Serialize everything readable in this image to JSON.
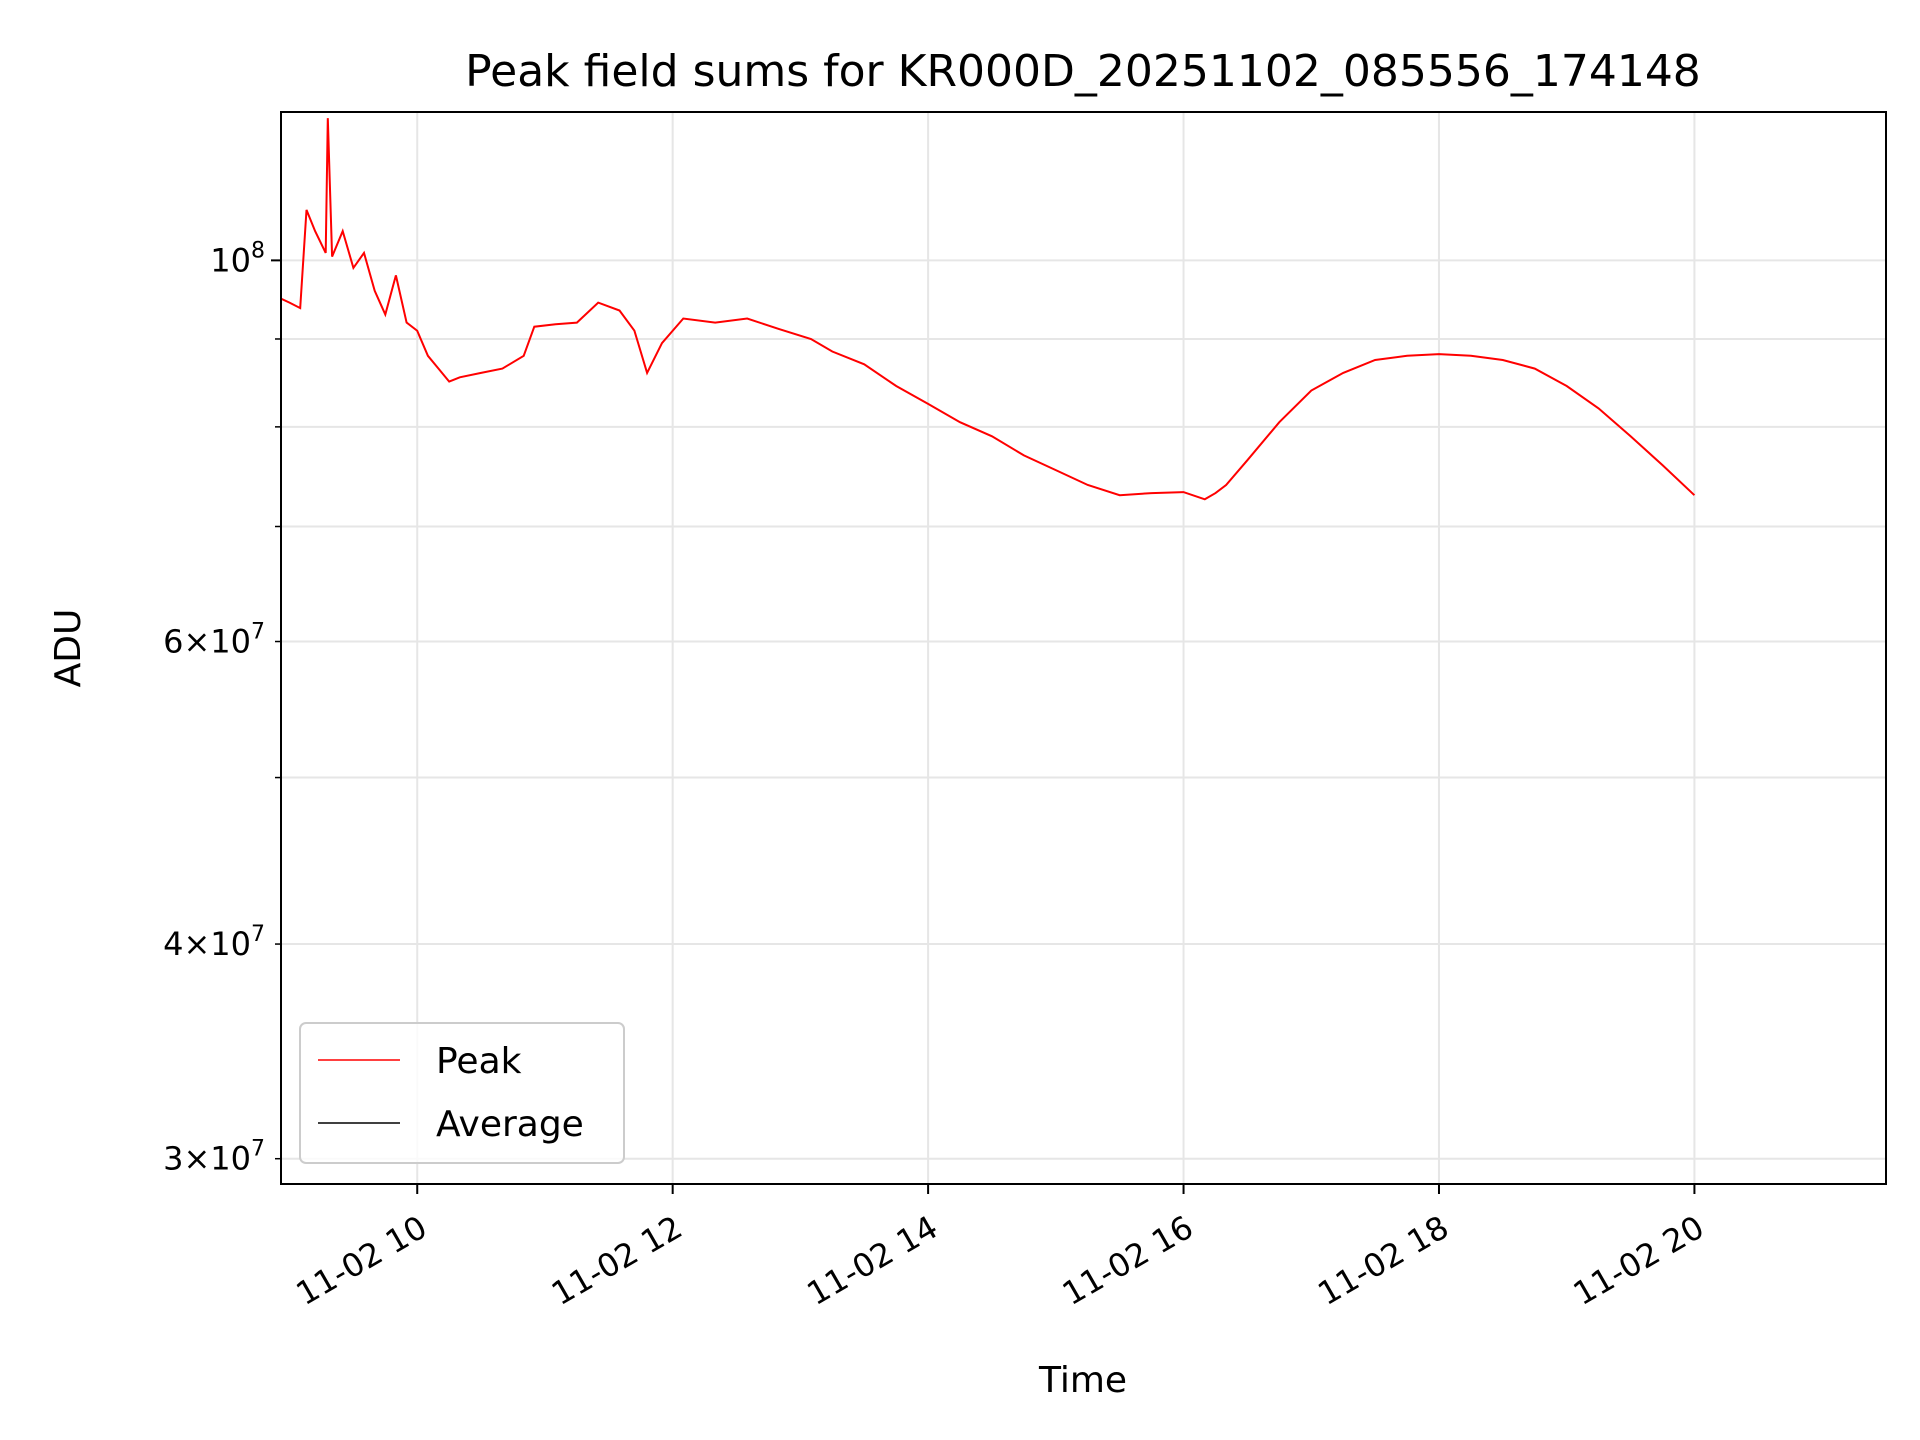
{
  "chart_data": {
    "type": "line",
    "title": "Peak field sums for KR000D_20251102_085556_174148",
    "xlabel": "Time",
    "ylabel": "ADU",
    "yscale": "log",
    "xlim": [
      "2025-11-02T08:56",
      "2025-11-02T21:30"
    ],
    "ylim": [
      29000000,
      122000000
    ],
    "x_ticks": [
      {
        "value": "2025-11-02T10:00",
        "label": "11-02 10"
      },
      {
        "value": "2025-11-02T12:00",
        "label": "11-02 12"
      },
      {
        "value": "2025-11-02T14:00",
        "label": "11-02 14"
      },
      {
        "value": "2025-11-02T16:00",
        "label": "11-02 16"
      },
      {
        "value": "2025-11-02T18:00",
        "label": "11-02 18"
      },
      {
        "value": "2025-11-02T20:00",
        "label": "11-02 20"
      }
    ],
    "y_major_ticks": [
      {
        "value": 100000000,
        "base": "10",
        "exp": "8"
      }
    ],
    "y_minor_ticks": [
      {
        "value": 30000000,
        "mant": "3",
        "base": "10",
        "exp": "7"
      },
      {
        "value": 40000000,
        "mant": "4",
        "base": "10",
        "exp": "7"
      },
      {
        "value": 50000000,
        "mant": "",
        "base": "",
        "exp": ""
      },
      {
        "value": 60000000,
        "mant": "6",
        "base": "10",
        "exp": "7"
      },
      {
        "value": 70000000,
        "mant": "",
        "base": "",
        "exp": ""
      },
      {
        "value": 80000000,
        "mant": "",
        "base": "",
        "exp": ""
      },
      {
        "value": 90000000,
        "mant": "",
        "base": "",
        "exp": ""
      }
    ],
    "grid": true,
    "legend_position": "lower-left",
    "series": [
      {
        "name": "Peak",
        "color": "#ff0000",
        "points": [
          [
            "2025-11-02T08:56",
            95000000
          ],
          [
            "2025-11-02T09:00",
            94500000
          ],
          [
            "2025-11-02T09:05",
            93800000
          ],
          [
            "2025-11-02T09:08",
            107000000
          ],
          [
            "2025-11-02T09:12",
            104000000
          ],
          [
            "2025-11-02T09:17",
            101000000
          ],
          [
            "2025-11-02T09:18",
            121000000
          ],
          [
            "2025-11-02T09:20",
            100500000
          ],
          [
            "2025-11-02T09:25",
            104000000
          ],
          [
            "2025-11-02T09:30",
            99000000
          ],
          [
            "2025-11-02T09:35",
            101000000
          ],
          [
            "2025-11-02T09:40",
            96000000
          ],
          [
            "2025-11-02T09:45",
            93000000
          ],
          [
            "2025-11-02T09:50",
            98000000
          ],
          [
            "2025-11-02T09:55",
            92000000
          ],
          [
            "2025-11-02T10:00",
            91000000
          ],
          [
            "2025-11-02T10:05",
            88000000
          ],
          [
            "2025-11-02T10:10",
            86500000
          ],
          [
            "2025-11-02T10:15",
            85000000
          ],
          [
            "2025-11-02T10:20",
            85500000
          ],
          [
            "2025-11-02T10:30",
            86000000
          ],
          [
            "2025-11-02T10:40",
            86500000
          ],
          [
            "2025-11-02T10:50",
            88000000
          ],
          [
            "2025-11-02T10:55",
            91500000
          ],
          [
            "2025-11-02T11:05",
            91800000
          ],
          [
            "2025-11-02T11:15",
            92000000
          ],
          [
            "2025-11-02T11:25",
            94500000
          ],
          [
            "2025-11-02T11:35",
            93500000
          ],
          [
            "2025-11-02T11:42",
            91000000
          ],
          [
            "2025-11-02T11:48",
            86000000
          ],
          [
            "2025-11-02T11:55",
            89500000
          ],
          [
            "2025-11-02T12:05",
            92500000
          ],
          [
            "2025-11-02T12:20",
            92000000
          ],
          [
            "2025-11-02T12:35",
            92500000
          ],
          [
            "2025-11-02T12:50",
            91200000
          ],
          [
            "2025-11-02T13:05",
            90000000
          ],
          [
            "2025-11-02T13:15",
            88500000
          ],
          [
            "2025-11-02T13:30",
            87000000
          ],
          [
            "2025-11-02T13:45",
            84500000
          ],
          [
            "2025-11-02T14:00",
            82500000
          ],
          [
            "2025-11-02T14:15",
            80500000
          ],
          [
            "2025-11-02T14:30",
            79000000
          ],
          [
            "2025-11-02T14:45",
            77000000
          ],
          [
            "2025-11-02T15:00",
            75500000
          ],
          [
            "2025-11-02T15:15",
            74000000
          ],
          [
            "2025-11-02T15:30",
            73000000
          ],
          [
            "2025-11-02T15:45",
            73200000
          ],
          [
            "2025-11-02T16:00",
            73300000
          ],
          [
            "2025-11-02T16:10",
            72600000
          ],
          [
            "2025-11-02T16:15",
            73200000
          ],
          [
            "2025-11-02T16:20",
            74000000
          ],
          [
            "2025-11-02T16:30",
            76500000
          ],
          [
            "2025-11-02T16:45",
            80500000
          ],
          [
            "2025-11-02T17:00",
            84000000
          ],
          [
            "2025-11-02T17:15",
            86000000
          ],
          [
            "2025-11-02T17:30",
            87500000
          ],
          [
            "2025-11-02T17:45",
            88000000
          ],
          [
            "2025-11-02T18:00",
            88200000
          ],
          [
            "2025-11-02T18:15",
            88000000
          ],
          [
            "2025-11-02T18:30",
            87500000
          ],
          [
            "2025-11-02T18:45",
            86500000
          ],
          [
            "2025-11-02T19:00",
            84500000
          ],
          [
            "2025-11-02T19:15",
            82000000
          ],
          [
            "2025-11-02T19:30",
            79000000
          ],
          [
            "2025-11-02T19:45",
            76000000
          ],
          [
            "2025-11-02T20:00",
            73000000
          ]
        ]
      },
      {
        "name": "Average",
        "color": "#000000",
        "points": []
      }
    ]
  }
}
